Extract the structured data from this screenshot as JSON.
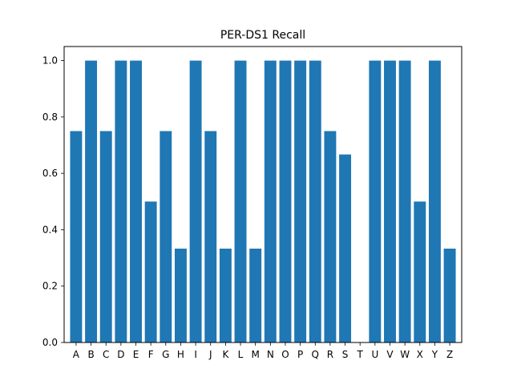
{
  "chart_data": {
    "type": "bar",
    "title": "PER-DS1 Recall",
    "xlabel": "",
    "ylabel": "",
    "categories": [
      "A",
      "B",
      "C",
      "D",
      "E",
      "F",
      "G",
      "H",
      "I",
      "J",
      "K",
      "L",
      "M",
      "N",
      "O",
      "P",
      "Q",
      "R",
      "S",
      "T",
      "U",
      "V",
      "W",
      "X",
      "Y",
      "Z"
    ],
    "values": [
      0.75,
      1.0,
      0.75,
      1.0,
      1.0,
      0.5,
      0.75,
      0.333,
      1.0,
      0.75,
      0.333,
      1.0,
      0.333,
      1.0,
      1.0,
      1.0,
      1.0,
      0.75,
      0.667,
      0.0,
      1.0,
      1.0,
      1.0,
      0.5,
      1.0,
      0.333
    ],
    "ylim": [
      0,
      1.05
    ],
    "yticks": [
      0.0,
      0.2,
      0.4,
      0.6,
      0.8,
      1.0
    ],
    "ytick_labels": [
      "0.0",
      "0.2",
      "0.4",
      "0.6",
      "0.8",
      "1.0"
    ],
    "grid": false,
    "bar_color": "#1f77b4"
  }
}
